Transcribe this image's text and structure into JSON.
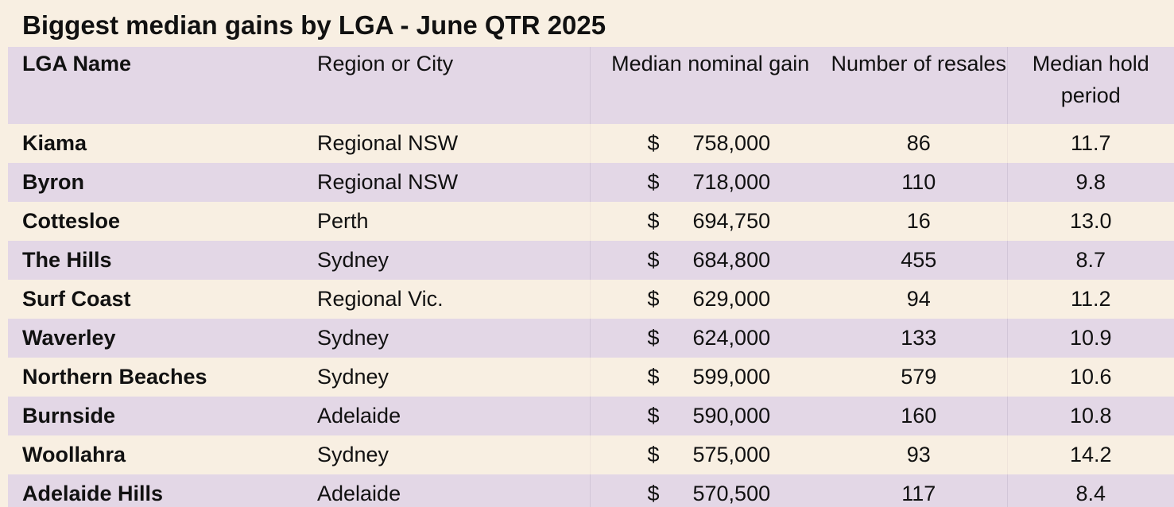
{
  "title": "Biggest median gains by LGA - June QTR 2025",
  "chart_data": {
    "type": "table",
    "title": "Biggest median gains by LGA - June QTR 2025",
    "columns": [
      "LGA Name",
      "Region or City",
      "Median nominal gain",
      "Number of resales",
      "Median hold period"
    ],
    "currency_symbol": "$",
    "rows": [
      {
        "lga": "Kiama",
        "region": "Regional NSW",
        "gain": "758,000",
        "resales": "86",
        "hold": "11.7"
      },
      {
        "lga": "Byron",
        "region": "Regional NSW",
        "gain": "718,000",
        "resales": "110",
        "hold": "9.8"
      },
      {
        "lga": "Cottesloe",
        "region": "Perth",
        "gain": "694,750",
        "resales": "16",
        "hold": "13.0"
      },
      {
        "lga": "The Hills",
        "region": "Sydney",
        "gain": "684,800",
        "resales": "455",
        "hold": "8.7"
      },
      {
        "lga": "Surf Coast",
        "region": "Regional Vic.",
        "gain": "629,000",
        "resales": "94",
        "hold": "11.2"
      },
      {
        "lga": "Waverley",
        "region": "Sydney",
        "gain": "624,000",
        "resales": "133",
        "hold": "10.9"
      },
      {
        "lga": "Northern Beaches",
        "region": "Sydney",
        "gain": "599,000",
        "resales": "579",
        "hold": "10.6"
      },
      {
        "lga": "Burnside",
        "region": "Adelaide",
        "gain": "590,000",
        "resales": "160",
        "hold": "10.8"
      },
      {
        "lga": "Woollahra",
        "region": "Sydney",
        "gain": "575,000",
        "resales": "93",
        "hold": "14.2"
      },
      {
        "lga": "Adelaide Hills",
        "region": "Adelaide",
        "gain": "570,500",
        "resales": "117",
        "hold": "8.4"
      }
    ]
  },
  "colors": {
    "background": "#f8efe2",
    "band": "#e3d7e6"
  }
}
